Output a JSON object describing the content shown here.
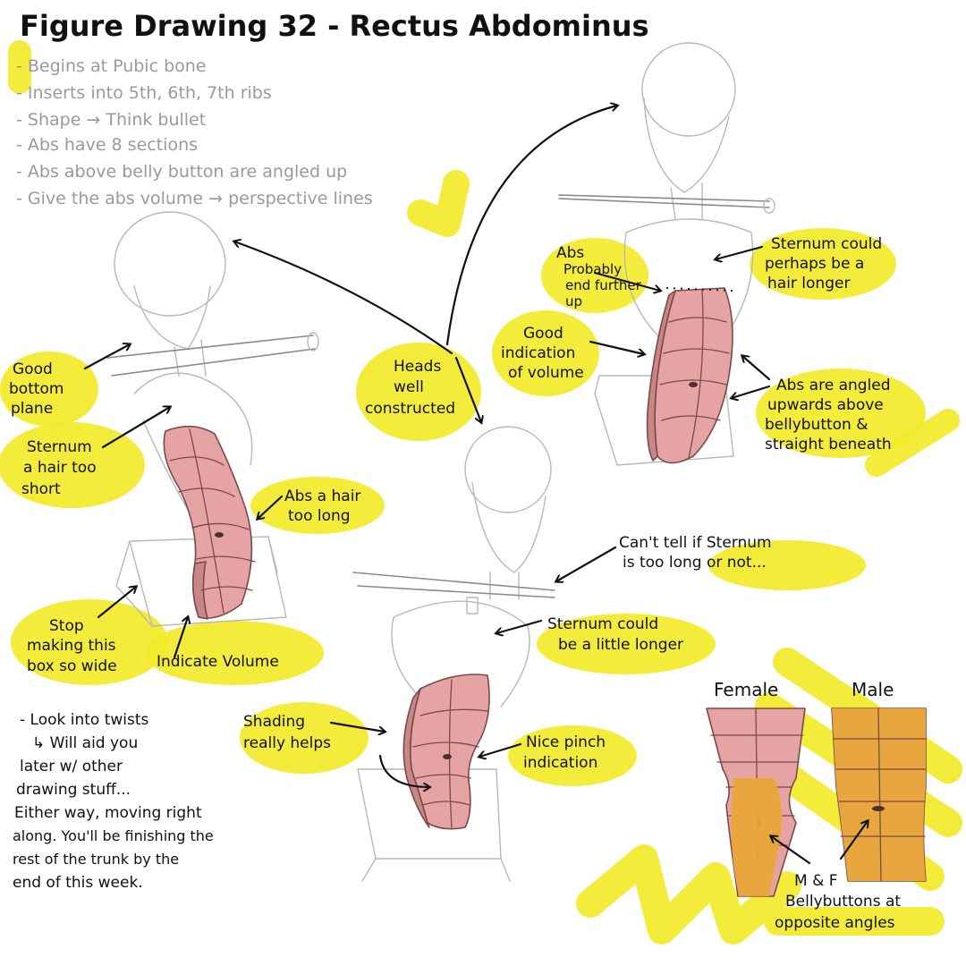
{
  "title": "Figure Drawing 32 - Rectus Abdominus",
  "notes": [
    "- Begins at Pubic bone",
    "- Inserts into 5th, 6th, 7th ribs",
    "- Shape → Think bullet",
    "- Abs have 8 sections",
    "- Abs above belly button are angled up",
    "- Give the abs volume → perspective lines"
  ],
  "annotations": {
    "good_bottom_plane": [
      "Good",
      "bottom",
      "plane"
    ],
    "sternum_short": [
      "Sternum",
      "a hair too",
      "short"
    ],
    "abs_too_long": [
      "Abs a hair",
      "too long"
    ],
    "stop_box": [
      "Stop",
      "making this",
      "box so wide"
    ],
    "indicate_volume": "Indicate Volume",
    "heads": [
      "Heads",
      "well",
      "constructed"
    ],
    "abs_probably": [
      "Abs",
      "Probably",
      "end further",
      "up"
    ],
    "good_volume": [
      "Good",
      "indication",
      "of volume"
    ],
    "sternum_hair_longer": [
      "Sternum could",
      "perhaps be a",
      "hair longer"
    ],
    "abs_angled": [
      "Abs are angled",
      "upwards above",
      "bellybutton &",
      "straight beneath"
    ],
    "cant_tell": [
      "Can't tell if Sternum",
      "is too long or not..."
    ],
    "sternum_little_longer": [
      "Sternum could",
      "be a little longer"
    ],
    "shading": [
      "Shading",
      "really helps"
    ],
    "nice_pinch": [
      "Nice pinch",
      "indication"
    ],
    "female": "Female",
    "male": "Male",
    "bellybuttons": [
      "M & F",
      "Bellybuttons at",
      "opposite angles"
    ]
  },
  "closing_note": [
    "- Look into twists",
    "  ↳ Will aid you",
    "later w/ other",
    "drawing stuff...",
    "Either way, moving right",
    "along. You'll be finishing the",
    "rest of the trunk by the",
    "end of this week."
  ],
  "colors": {
    "highlight": "#f2ea2a",
    "abs_fill": "#e6a3a3",
    "abs_shadow": "#c98686",
    "male_overlay": "#e9a63a",
    "ink": "#111111",
    "pencil": "#b8b8b8"
  }
}
